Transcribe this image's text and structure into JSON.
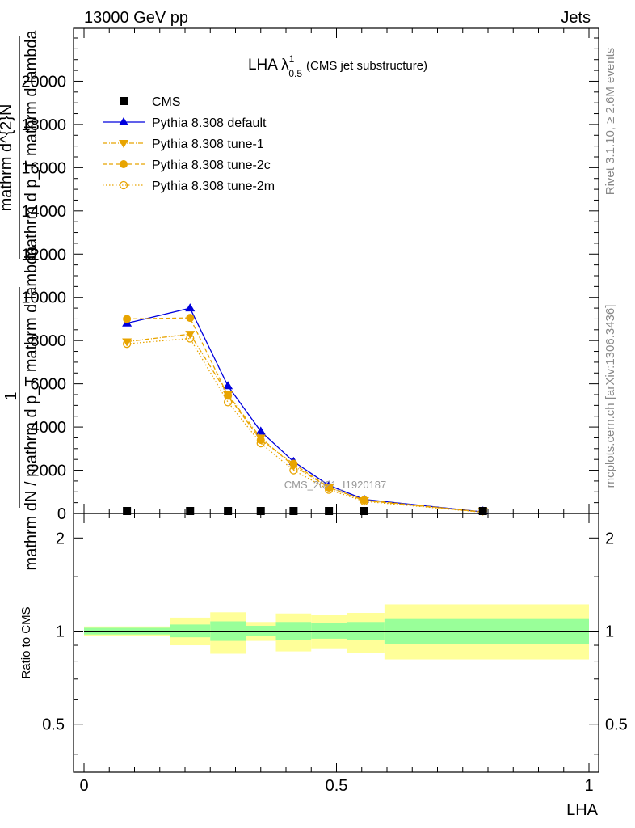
{
  "header": {
    "left": "13000 GeV pp",
    "right": "Jets"
  },
  "side_labels": {
    "rivet": "Rivet 3.1.10, ≥ 2.6M events",
    "mcplots": "mcplots.cern.ch [arXiv:1306.3436]"
  },
  "watermark": "CMS_2021_I1920187",
  "chart_data": [
    {
      "type": "line",
      "title_main": "LHA λ",
      "title_sup": "1",
      "title_sub": "0.5",
      "title_rest": "(CMS jet substructure)",
      "ylabel_1": "1",
      "ylabel_2": "mathrm dN / mathrm d p_T mathrm d lambda",
      "ylabel_3": "mathrm d^{2}N",
      "ylabel_4": "mathrm d p_T mathrm d lambda",
      "xlim": [
        0,
        1
      ],
      "ylim": [
        0,
        22000
      ],
      "yticks": [
        0,
        2000,
        4000,
        6000,
        8000,
        10000,
        12000,
        14000,
        16000,
        18000,
        20000
      ],
      "ytick_labels": [
        "0",
        "2000",
        "4000",
        "6000",
        "8000",
        "10000",
        "12000",
        "14000",
        "16000",
        "18000",
        "20000"
      ],
      "legend_position": "top-left",
      "x": [
        0.085,
        0.21,
        0.285,
        0.35,
        0.415,
        0.485,
        0.555,
        0.79
      ],
      "series": [
        {
          "name": "CMS",
          "color": "#000000",
          "marker": "square",
          "values": [
            30,
            30,
            30,
            30,
            30,
            30,
            30,
            10
          ]
        },
        {
          "name": "Pythia 8.308 default",
          "color": "#0000dd",
          "marker": "triangle-up",
          "dash": "",
          "values": [
            8800,
            9500,
            5900,
            3800,
            2400,
            1300,
            650,
            70
          ]
        },
        {
          "name": "Pythia 8.308 tune-1",
          "color": "#e8a400",
          "marker": "triangle-down",
          "dash": "6,2,1,2",
          "values": [
            7950,
            8300,
            5500,
            3500,
            2200,
            1200,
            600,
            60
          ]
        },
        {
          "name": "Pythia 8.308 tune-2c",
          "color": "#e8a400",
          "marker": "circle",
          "dash": "5,3",
          "values": [
            9000,
            9050,
            5450,
            3400,
            2300,
            1200,
            620,
            65
          ]
        },
        {
          "name": "Pythia 8.308 tune-2m",
          "color": "#e8a400",
          "marker": "circle-open",
          "dash": "1.5,2.5",
          "values": [
            7850,
            8100,
            5150,
            3250,
            2000,
            1100,
            560,
            55
          ]
        }
      ]
    },
    {
      "type": "area",
      "ylabel": "Ratio to CMS",
      "xlabel": "LHA",
      "xlim": [
        0,
        1
      ],
      "ylim": [
        0.35,
        2.4
      ],
      "log_y": true,
      "yticks": [
        0.5,
        1,
        2
      ],
      "ytick_labels": [
        "0.5",
        "1",
        "2"
      ],
      "xticks": [
        0,
        0.5,
        1
      ],
      "xtick_labels": [
        "0",
        "0.5",
        "1"
      ],
      "reference_line": 1,
      "bins": [
        {
          "x0": 0.0,
          "x1": 0.17,
          "stat_lo": 0.975,
          "stat_hi": 1.025,
          "tot_lo": 0.965,
          "tot_hi": 1.035
        },
        {
          "x0": 0.17,
          "x1": 0.25,
          "stat_lo": 0.955,
          "stat_hi": 1.05,
          "tot_lo": 0.9,
          "tot_hi": 1.105
        },
        {
          "x0": 0.25,
          "x1": 0.32,
          "stat_lo": 0.93,
          "stat_hi": 1.075,
          "tot_lo": 0.845,
          "tot_hi": 1.15
        },
        {
          "x0": 0.32,
          "x1": 0.38,
          "stat_lo": 0.965,
          "stat_hi": 1.04,
          "tot_lo": 0.93,
          "tot_hi": 1.07
        },
        {
          "x0": 0.38,
          "x1": 0.45,
          "stat_lo": 0.935,
          "stat_hi": 1.07,
          "tot_lo": 0.86,
          "tot_hi": 1.14
        },
        {
          "x0": 0.45,
          "x1": 0.52,
          "stat_lo": 0.945,
          "stat_hi": 1.06,
          "tot_lo": 0.875,
          "tot_hi": 1.125
        },
        {
          "x0": 0.52,
          "x1": 0.595,
          "stat_lo": 0.935,
          "stat_hi": 1.07,
          "tot_lo": 0.85,
          "tot_hi": 1.145
        },
        {
          "x0": 0.595,
          "x1": 1.0,
          "stat_lo": 0.91,
          "stat_hi": 1.1,
          "tot_lo": 0.81,
          "tot_hi": 1.22
        }
      ],
      "band_colors": {
        "stat": "#99ff99",
        "total": "#ffff99"
      }
    }
  ]
}
